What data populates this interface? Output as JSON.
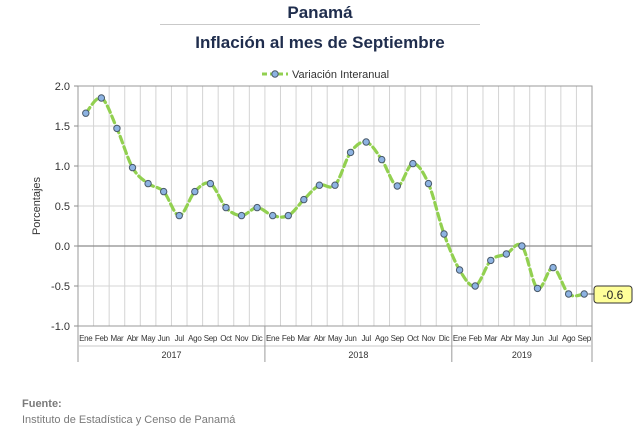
{
  "header": {
    "title": "Panamá",
    "subtitle": "Inflación al mes de Septiembre"
  },
  "source": {
    "label": "Fuente:",
    "text": "Instituto de Estadística y Censo de Panamá"
  },
  "chart_data": {
    "type": "line",
    "ylabel": "Porcentajes",
    "ylim": [
      -1.0,
      2.0
    ],
    "yticks": [
      -1.0,
      -0.5,
      0.0,
      0.5,
      1.0,
      1.5,
      2.0
    ],
    "ytick_labels": [
      "-1.0",
      "-0.5",
      "0.0",
      "0.5",
      "1.0",
      "1.5",
      "2.0"
    ],
    "grid": true,
    "legend": {
      "position": "top-center"
    },
    "month_labels": [
      "Ene",
      "Feb",
      "Mar",
      "Abr",
      "May",
      "Jun",
      "Jul",
      "Ago",
      "Sep",
      "Oct",
      "Nov",
      "Dic",
      "Ene",
      "Feb",
      "Mar",
      "Abr",
      "May",
      "Jun",
      "Jul",
      "Ago",
      "Sep",
      "Oct",
      "Nov",
      "Dic",
      "Ene",
      "Feb",
      "Mar",
      "Abr",
      "May",
      "Jun",
      "Jul",
      "Ago",
      "Sep"
    ],
    "years": [
      {
        "label": "2017",
        "months": 12
      },
      {
        "label": "2018",
        "months": 12
      },
      {
        "label": "2019",
        "months": 9
      }
    ],
    "series": [
      {
        "name": "Variación Interanual",
        "color": "#92d050",
        "marker_color": "#8db3e2",
        "values": [
          1.66,
          1.85,
          1.47,
          0.98,
          0.78,
          0.68,
          0.38,
          0.68,
          0.78,
          0.48,
          0.38,
          0.48,
          0.38,
          0.38,
          0.58,
          0.76,
          0.76,
          1.17,
          1.3,
          1.08,
          0.75,
          1.03,
          0.78,
          0.15,
          -0.3,
          -0.5,
          -0.18,
          -0.1,
          0.0,
          -0.53,
          -0.27,
          -0.6,
          -0.6
        ]
      }
    ],
    "callout": {
      "label": "-0.6",
      "color": "#ffff99"
    }
  }
}
